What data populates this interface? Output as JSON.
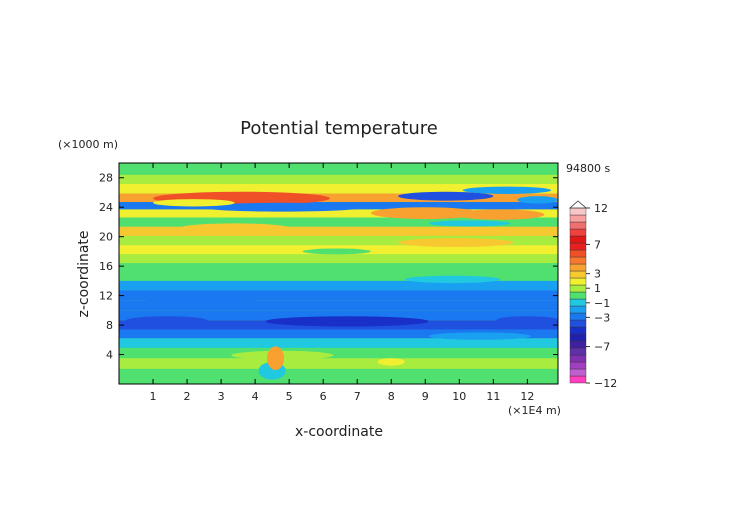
{
  "chart_data": {
    "type": "heatmap",
    "title": "Potential temperature",
    "time_label": "94800 s",
    "xlabel": "x-coordinate",
    "ylabel": "z-coordinate",
    "x_unit": "(×1E4 m)",
    "y_unit": "(×1000 m)",
    "xlim": [
      0,
      12.9
    ],
    "ylim": [
      0,
      30
    ],
    "x_ticks": [
      "1",
      "2",
      "3",
      "4",
      "5",
      "6",
      "7",
      "8",
      "9",
      "10",
      "11",
      "12"
    ],
    "y_ticks": [
      "4",
      "8",
      "12",
      "16",
      "20",
      "24",
      "28"
    ],
    "colorbar": {
      "levels": [
        -12,
        -11,
        -10,
        -9,
        -8,
        -7,
        -6,
        -5,
        -4,
        -3,
        -2,
        -1,
        0,
        1,
        2,
        3,
        4,
        5,
        6,
        7,
        8,
        9,
        10,
        11,
        12
      ],
      "labels": [
        "12",
        "7",
        "3",
        "1",
        "−1",
        "−3",
        "−7",
        "−12"
      ],
      "colors": [
        "#ff3fc0",
        "#c060d0",
        "#a040c0",
        "#8030b0",
        "#6030a8",
        "#4020a0",
        "#2020b0",
        "#1830c8",
        "#2050e0",
        "#1a78f0",
        "#1aa0f0",
        "#20c8e0",
        "#50e070",
        "#a8ec40",
        "#f0f030",
        "#f8c830",
        "#f8a030",
        "#f87830",
        "#f05028",
        "#e82020",
        "#e01818",
        "#f04040",
        "#f07070",
        "#f8a0a0",
        "#f8c8c8"
      ]
    },
    "bands": [
      {
        "z": 29.0,
        "value": 0.4
      },
      {
        "z": 27.8,
        "value": 1.3
      },
      {
        "z": 26.5,
        "value": 2.6
      },
      {
        "z": 25.2,
        "value": 4.8
      },
      {
        "z": 24.2,
        "value": -3.0
      },
      {
        "z": 23.2,
        "value": 2.4
      },
      {
        "z": 22.0,
        "value": 0.8
      },
      {
        "z": 20.7,
        "value": 3.6
      },
      {
        "z": 19.5,
        "value": 1.4
      },
      {
        "z": 18.2,
        "value": 2.6
      },
      {
        "z": 17.0,
        "value": 1.6
      },
      {
        "z": 15.8,
        "value": 0.6
      },
      {
        "z": 14.6,
        "value": 0.0
      },
      {
        "z": 13.4,
        "value": -1.4
      },
      {
        "z": 12.0,
        "value": -2.3
      },
      {
        "z": 10.6,
        "value": -2.7
      },
      {
        "z": 9.3,
        "value": -3.0
      },
      {
        "z": 8.0,
        "value": -3.6
      },
      {
        "z": 6.8,
        "value": -2.2
      },
      {
        "z": 5.6,
        "value": -0.8
      },
      {
        "z": 4.2,
        "value": 0.3
      },
      {
        "z": 2.8,
        "value": 1.1
      },
      {
        "z": 1.3,
        "value": 0.5
      }
    ]
  }
}
